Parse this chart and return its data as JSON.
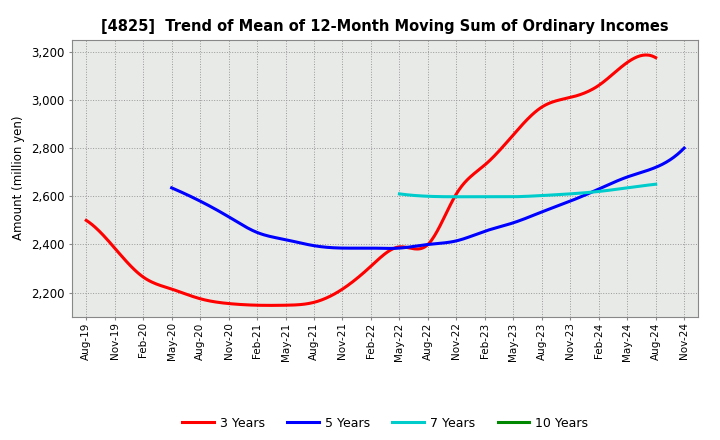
{
  "title": "[4825]  Trend of Mean of 12-Month Moving Sum of Ordinary Incomes",
  "ylabel": "Amount (million yen)",
  "ylim": [
    2100,
    3250
  ],
  "yticks": [
    2200,
    2400,
    2600,
    2800,
    3000,
    3200
  ],
  "background_color": "#ffffff",
  "plot_bg_color": "#e8eae8",
  "x_labels": [
    "Aug-19",
    "Nov-19",
    "Feb-20",
    "May-20",
    "Aug-20",
    "Nov-20",
    "Feb-21",
    "May-21",
    "Aug-21",
    "Nov-21",
    "Feb-22",
    "May-22",
    "Aug-22",
    "Nov-22",
    "Feb-23",
    "May-23",
    "Aug-23",
    "Nov-23",
    "Feb-24",
    "May-24",
    "Aug-24",
    "Nov-24"
  ],
  "series": {
    "3 Years": {
      "color": "#ff0000",
      "values": [
        2500,
        2385,
        2265,
        2215,
        2175,
        2155,
        2148,
        2148,
        2160,
        2215,
        2310,
        2390,
        2400,
        2610,
        2730,
        2855,
        2970,
        3010,
        3060,
        3155,
        3175,
        null
      ]
    },
    "5 Years": {
      "color": "#0000ff",
      "values": [
        null,
        null,
        null,
        2635,
        2580,
        2515,
        2450,
        2420,
        2395,
        2385,
        2385,
        2385,
        2400,
        2415,
        2455,
        2490,
        2535,
        2580,
        2630,
        2680,
        2720,
        2800
      ]
    },
    "7 Years": {
      "color": "#00cccc",
      "values": [
        null,
        null,
        null,
        null,
        null,
        null,
        null,
        null,
        null,
        null,
        null,
        2610,
        2600,
        2598,
        2598,
        2598,
        2603,
        2610,
        2620,
        2635,
        2650,
        null
      ]
    },
    "10 Years": {
      "color": "#008800",
      "values": [
        null,
        null,
        null,
        null,
        null,
        null,
        null,
        null,
        null,
        null,
        null,
        null,
        null,
        null,
        null,
        null,
        null,
        null,
        null,
        null,
        null,
        null
      ]
    }
  },
  "legend_labels": [
    "3 Years",
    "5 Years",
    "7 Years",
    "10 Years"
  ],
  "legend_colors": [
    "#ff0000",
    "#0000ff",
    "#00cccc",
    "#008800"
  ]
}
